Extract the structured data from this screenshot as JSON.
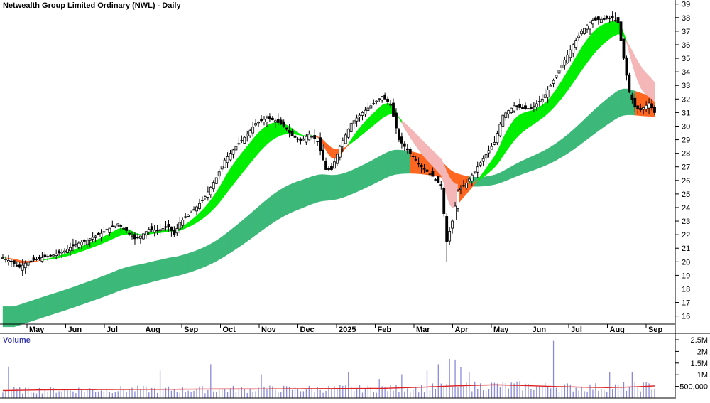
{
  "chart_data": {
    "type": "candlestick",
    "title": "Netwealth Group Limited Ordinary (NWL) - Daily",
    "volume_title": "Volume",
    "y_ticks": [
      "16",
      "17",
      "18",
      "19",
      "20",
      "21",
      "22",
      "23",
      "24",
      "25",
      "26",
      "27",
      "28",
      "29",
      "30",
      "31",
      "32",
      "33",
      "34",
      "35",
      "36",
      "37",
      "38",
      "39"
    ],
    "ylim": [
      15.3,
      39.3
    ],
    "volume_ticks": [
      "2.5M",
      "2M",
      "1.5M",
      "1M",
      "500,000"
    ],
    "volume_tick_values": [
      2500000,
      2000000,
      1500000,
      1000000,
      500000
    ],
    "month_labels": [
      "May",
      "Jun",
      "Jul",
      "Aug",
      "Sep",
      "Oct",
      "Nov",
      "Dec",
      "2025",
      "Feb",
      "Mar",
      "Apr",
      "May",
      "Jun",
      "Jul",
      "Aug",
      "Sep"
    ],
    "grid": false,
    "price_anchors": [
      [
        0,
        20.3
      ],
      [
        3,
        20.0
      ],
      [
        6,
        19.6
      ],
      [
        8,
        19.9
      ],
      [
        12,
        20.2
      ],
      [
        18,
        20.5
      ],
      [
        22,
        20.8
      ],
      [
        26,
        21.3
      ],
      [
        30,
        21.6
      ],
      [
        35,
        22.1
      ],
      [
        39,
        22.6
      ],
      [
        41,
        22.8
      ],
      [
        44,
        22.3
      ],
      [
        47,
        21.7
      ],
      [
        49,
        21.9
      ],
      [
        52,
        22.4
      ],
      [
        55,
        22.3
      ],
      [
        59,
        22.6
      ],
      [
        61,
        22.0
      ],
      [
        63,
        22.9
      ],
      [
        68,
        23.8
      ],
      [
        72,
        24.8
      ],
      [
        76,
        26.2
      ],
      [
        79,
        27.5
      ],
      [
        83,
        28.5
      ],
      [
        87,
        29.4
      ],
      [
        90,
        30.2
      ],
      [
        94,
        30.6
      ],
      [
        97,
        30.4
      ],
      [
        100,
        30.0
      ],
      [
        103,
        29.3
      ],
      [
        106,
        28.9
      ],
      [
        109,
        29.4
      ],
      [
        112,
        28.9
      ],
      [
        115,
        26.8
      ],
      [
        117,
        26.8
      ],
      [
        120,
        28.5
      ],
      [
        124,
        30.2
      ],
      [
        128,
        31.0
      ],
      [
        131,
        31.5
      ],
      [
        135,
        32.2
      ],
      [
        138,
        31.6
      ],
      [
        141,
        29.0
      ],
      [
        145,
        28.0
      ],
      [
        149,
        27.0
      ],
      [
        153,
        26.3
      ],
      [
        156,
        25.6
      ],
      [
        158,
        21.5
      ],
      [
        160,
        23.0
      ],
      [
        162,
        25.2
      ],
      [
        165,
        25.8
      ],
      [
        169,
        27.0
      ],
      [
        172,
        27.9
      ],
      [
        175,
        28.8
      ],
      [
        178,
        30.8
      ],
      [
        182,
        31.5
      ],
      [
        185,
        31.3
      ],
      [
        188,
        31.3
      ],
      [
        192,
        32.0
      ],
      [
        195,
        33.0
      ],
      [
        199,
        34.5
      ],
      [
        203,
        36.0
      ],
      [
        206,
        37.0
      ],
      [
        210,
        37.8
      ],
      [
        214,
        37.9
      ],
      [
        217,
        38.0
      ],
      [
        219,
        37.6
      ],
      [
        221,
        35.0
      ],
      [
        223,
        32.5
      ],
      [
        225,
        31.4
      ],
      [
        227,
        31.2
      ],
      [
        230,
        31.7
      ],
      [
        232,
        31.0
      ]
    ],
    "volume_anchors": [
      [
        0,
        330000
      ],
      [
        20,
        350000
      ],
      [
        40,
        370000
      ],
      [
        60,
        360000
      ],
      [
        80,
        370000
      ],
      [
        100,
        380000
      ],
      [
        120,
        400000
      ],
      [
        140,
        410000
      ],
      [
        150,
        420000
      ],
      [
        160,
        480000
      ],
      [
        175,
        530000
      ],
      [
        185,
        510000
      ],
      [
        200,
        460000
      ],
      [
        215,
        450000
      ],
      [
        232,
        520000
      ]
    ],
    "volume_spikes": [
      [
        2,
        1350000
      ],
      [
        56,
        1180000
      ],
      [
        74,
        1450000
      ],
      [
        92,
        1020000
      ],
      [
        123,
        1100000
      ],
      [
        134,
        820000
      ],
      [
        142,
        1020000
      ],
      [
        151,
        1180000
      ],
      [
        155,
        1450000
      ],
      [
        159,
        1680000
      ],
      [
        161,
        1650000
      ],
      [
        163,
        1330000
      ],
      [
        166,
        1100000
      ],
      [
        196,
        2450000
      ],
      [
        216,
        1100000
      ],
      [
        224,
        1120000
      ]
    ],
    "volume_ma_anchors": [
      [
        0,
        320000
      ],
      [
        15,
        350000
      ],
      [
        30,
        360000
      ],
      [
        45,
        370000
      ],
      [
        60,
        375000
      ],
      [
        75,
        385000
      ],
      [
        90,
        385000
      ],
      [
        105,
        395000
      ],
      [
        120,
        405000
      ],
      [
        135,
        415000
      ],
      [
        150,
        470000
      ],
      [
        160,
        520000
      ],
      [
        175,
        570000
      ],
      [
        185,
        540000
      ],
      [
        195,
        500000
      ],
      [
        205,
        470000
      ],
      [
        215,
        450000
      ],
      [
        225,
        480000
      ],
      [
        232,
        520000
      ]
    ]
  },
  "colors": {
    "short_band_up": "#00ee00",
    "short_band_down": "#ff6620",
    "short_band_fading": "#f4b6b6",
    "long_band_up": "#3cb878",
    "long_band_down": "#ff6620",
    "candle": "#000000",
    "volume_bar": "#8a8ad8",
    "volume_ma": "#dd2222",
    "axis": "#000000",
    "title_text": "#000000",
    "volume_label": "#3a3aa8"
  }
}
